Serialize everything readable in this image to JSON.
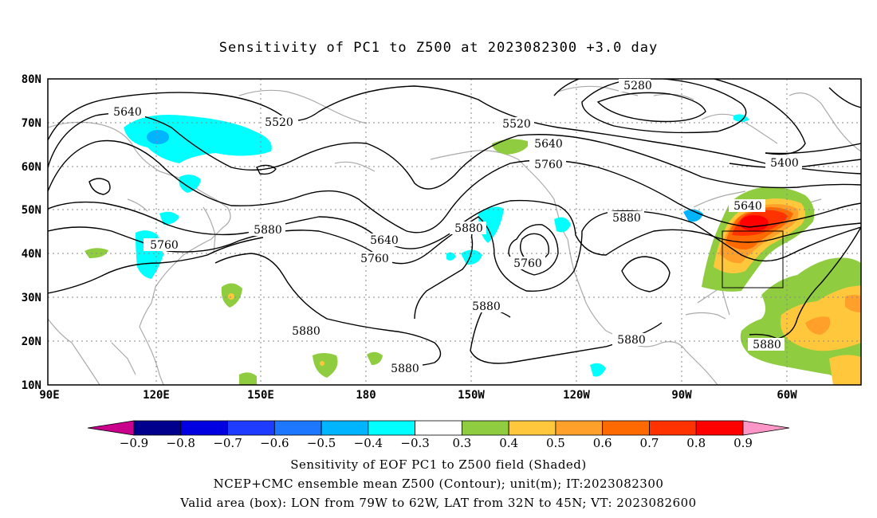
{
  "title": "Sensitivity of PC1 to Z500 at 2023082300 +3.0 day",
  "axes": {
    "lat_labels": [
      "80N",
      "70N",
      "60N",
      "50N",
      "40N",
      "30N",
      "20N",
      "10N"
    ],
    "lon_labels": [
      "90E",
      "120E",
      "150E",
      "180",
      "150W",
      "120W",
      "90W",
      "60W"
    ]
  },
  "contour_labels": [
    {
      "text": "5280"
    },
    {
      "text": "5400"
    },
    {
      "text": "5520"
    },
    {
      "text": "5520"
    },
    {
      "text": "5640"
    },
    {
      "text": "5640"
    },
    {
      "text": "5640"
    },
    {
      "text": "5640"
    },
    {
      "text": "5760"
    },
    {
      "text": "5760"
    },
    {
      "text": "5760"
    },
    {
      "text": "5760"
    },
    {
      "text": "5880"
    },
    {
      "text": "5880"
    },
    {
      "text": "5880"
    },
    {
      "text": "5880"
    },
    {
      "text": "5880"
    },
    {
      "text": "5880"
    },
    {
      "text": "5880"
    }
  ],
  "colorbar": {
    "labels": [
      "−0.9",
      "−0.8",
      "−0.7",
      "−0.6",
      "−0.5",
      "−0.4",
      "−0.3",
      "0.3",
      "0.4",
      "0.5",
      "0.6",
      "0.7",
      "0.8",
      "0.9"
    ],
    "colors": [
      "#00008c",
      "#0000e0",
      "#1e3cff",
      "#1e78ff",
      "#00b4ff",
      "#00ffff",
      "#ffffff",
      "#8fcc3f",
      "#ffc83c",
      "#ffa02a",
      "#ff6a00",
      "#ff3200",
      "#ff0000"
    ],
    "left_arrow_color": "#c8008c",
    "right_arrow_color": "#ff96c8"
  },
  "footer": {
    "line1": "Sensitivity of EOF PC1 to Z500 field (Shaded)",
    "line2": "NCEP+CMC ensemble mean Z500 (Contour); unit(m); IT:2023082300",
    "line3": "Valid area (box): LON from 79W to 62W, LAT from 32N to 45N; VT: 2023082600"
  }
}
